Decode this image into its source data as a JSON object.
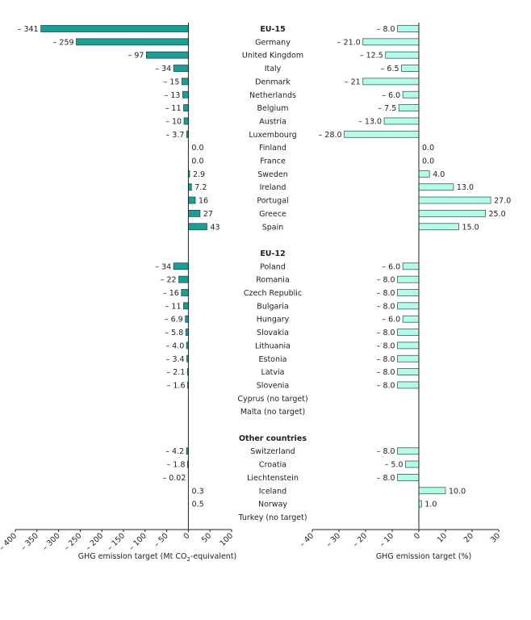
{
  "chart_data": [
    {
      "type": "bar",
      "orientation": "horizontal",
      "title": "",
      "xlabel": "GHG emission target (Mt CO2-equivalent)",
      "xlabel_parts": {
        "pre": "GHG emission target (Mt CO",
        "sub": "2",
        "post": "-equivalent)"
      },
      "xlim": [
        -400,
        100
      ],
      "xticks": [
        -400,
        -350,
        -300,
        -250,
        -200,
        -150,
        -100,
        -50,
        0,
        50,
        100
      ],
      "xtick_labels": [
        "– 400",
        "– 350",
        "– 300",
        "– 250",
        "– 200",
        "– 150",
        "– 100",
        "– 50",
        "0",
        "50",
        "100"
      ],
      "bar_color": "#1a9e96",
      "grid": false,
      "rows": [
        {
          "category": "EU-15",
          "value": -341,
          "label": "– 341"
        },
        {
          "category": "Germany",
          "value": -259,
          "label": "– 259"
        },
        {
          "category": "United Kingdom",
          "value": -97,
          "label": "– 97"
        },
        {
          "category": "Italy",
          "value": -34,
          "label": "– 34"
        },
        {
          "category": "Denmark",
          "value": -15,
          "label": "– 15"
        },
        {
          "category": "Netherlands",
          "value": -13,
          "label": "– 13"
        },
        {
          "category": "Belgium",
          "value": -11,
          "label": "– 11"
        },
        {
          "category": "Austria",
          "value": -10,
          "label": "– 10"
        },
        {
          "category": "Luxembourg",
          "value": -3.7,
          "label": "– 3.7"
        },
        {
          "category": "Finland",
          "value": 0.0,
          "label": "0.0"
        },
        {
          "category": "France",
          "value": 0.0,
          "label": "0.0"
        },
        {
          "category": "Sweden",
          "value": 2.9,
          "label": "2.9"
        },
        {
          "category": "Ireland",
          "value": 7.2,
          "label": "7.2"
        },
        {
          "category": "Portugal",
          "value": 16,
          "label": "16"
        },
        {
          "category": "Greece",
          "value": 27,
          "label": "27"
        },
        {
          "category": "Spain",
          "value": 43,
          "label": "43"
        },
        {
          "category": "",
          "value": null,
          "label": null
        },
        {
          "category": "EU-12",
          "value": null,
          "label": null
        },
        {
          "category": "Poland",
          "value": -34,
          "label": "– 34"
        },
        {
          "category": "Romania",
          "value": -22,
          "label": "– 22"
        },
        {
          "category": "Czech Republic",
          "value": -16,
          "label": "– 16"
        },
        {
          "category": "Bulgaria",
          "value": -11,
          "label": "– 11"
        },
        {
          "category": "Hungary",
          "value": -6.9,
          "label": "– 6.9"
        },
        {
          "category": "Slovakia",
          "value": -5.8,
          "label": "– 5.8"
        },
        {
          "category": "Lithuania",
          "value": -4.0,
          "label": "– 4.0"
        },
        {
          "category": "Estonia",
          "value": -3.4,
          "label": "– 3.4"
        },
        {
          "category": "Latvia",
          "value": -2.1,
          "label": "– 2.1"
        },
        {
          "category": "Slovenia",
          "value": -1.6,
          "label": "– 1.6"
        },
        {
          "category": "Cyprus (no target)",
          "value": null,
          "label": null
        },
        {
          "category": "Malta (no target)",
          "value": null,
          "label": null
        },
        {
          "category": "",
          "value": null,
          "label": null
        },
        {
          "category": "Other countries",
          "value": null,
          "label": null
        },
        {
          "category": "Switzerland",
          "value": -4.2,
          "label": "– 4.2"
        },
        {
          "category": "Croatia",
          "value": -1.8,
          "label": "– 1.8"
        },
        {
          "category": "Liechtenstein",
          "value": -0.02,
          "label": "– 0.02"
        },
        {
          "category": "Iceland",
          "value": 0.3,
          "label": "0.3"
        },
        {
          "category": "Norway",
          "value": 0.5,
          "label": "0.5"
        },
        {
          "category": "Turkey (no target)",
          "value": null,
          "label": null
        }
      ]
    },
    {
      "type": "bar",
      "orientation": "horizontal",
      "title": "",
      "xlabel": "GHG emission target (%)",
      "xlim": [
        -40,
        30
      ],
      "xticks": [
        -40,
        -30,
        -20,
        -10,
        0,
        10,
        20,
        30
      ],
      "xtick_labels": [
        "– 40",
        "– 30",
        "– 20",
        "– 10",
        "0",
        "10",
        "20",
        "30"
      ],
      "bar_color": "#b3fcea",
      "grid": false,
      "rows": [
        {
          "category": "EU-15",
          "value": -8.0,
          "label": "– 8.0"
        },
        {
          "category": "Germany",
          "value": -21.0,
          "label": "– 21.0"
        },
        {
          "category": "United Kingdom",
          "value": -12.5,
          "label": "– 12.5"
        },
        {
          "category": "Italy",
          "value": -6.5,
          "label": "– 6.5"
        },
        {
          "category": "Denmark",
          "value": -21,
          "label": "– 21"
        },
        {
          "category": "Netherlands",
          "value": -6.0,
          "label": "– 6.0"
        },
        {
          "category": "Belgium",
          "value": -7.5,
          "label": "– 7.5"
        },
        {
          "category": "Austria",
          "value": -13.0,
          "label": "– 13.0"
        },
        {
          "category": "Luxembourg",
          "value": -28.0,
          "label": "– 28.0"
        },
        {
          "category": "Finland",
          "value": 0.0,
          "label": "0.0"
        },
        {
          "category": "France",
          "value": 0.0,
          "label": "0.0"
        },
        {
          "category": "Sweden",
          "value": 4.0,
          "label": "4.0"
        },
        {
          "category": "Ireland",
          "value": 13.0,
          "label": "13.0"
        },
        {
          "category": "Portugal",
          "value": 27.0,
          "label": "27.0"
        },
        {
          "category": "Greece",
          "value": 25.0,
          "label": "25.0"
        },
        {
          "category": "Spain",
          "value": 15.0,
          "label": "15.0"
        },
        {
          "category": "",
          "value": null,
          "label": null
        },
        {
          "category": "EU-12",
          "value": null,
          "label": null
        },
        {
          "category": "Poland",
          "value": -6.0,
          "label": "– 6.0"
        },
        {
          "category": "Romania",
          "value": -8.0,
          "label": "– 8.0"
        },
        {
          "category": "Czech Republic",
          "value": -8.0,
          "label": "– 8.0"
        },
        {
          "category": "Bulgaria",
          "value": -8.0,
          "label": "– 8.0"
        },
        {
          "category": "Hungary",
          "value": -6.0,
          "label": "– 6.0"
        },
        {
          "category": "Slovakia",
          "value": -8.0,
          "label": "– 8.0"
        },
        {
          "category": "Lithuania",
          "value": -8.0,
          "label": "– 8.0"
        },
        {
          "category": "Estonia",
          "value": -8.0,
          "label": "– 8.0"
        },
        {
          "category": "Latvia",
          "value": -8.0,
          "label": "– 8.0"
        },
        {
          "category": "Slovenia",
          "value": -8.0,
          "label": "– 8.0"
        },
        {
          "category": "Cyprus (no target)",
          "value": null,
          "label": null
        },
        {
          "category": "Malta (no target)",
          "value": null,
          "label": null
        },
        {
          "category": "",
          "value": null,
          "label": null
        },
        {
          "category": "Other countries",
          "value": null,
          "label": null
        },
        {
          "category": "Switzerland",
          "value": -8.0,
          "label": "– 8.0"
        },
        {
          "category": "Croatia",
          "value": -5.0,
          "label": "– 5.0"
        },
        {
          "category": "Liechtenstein",
          "value": -8.0,
          "label": "– 8.0"
        },
        {
          "category": "Iceland",
          "value": 10.0,
          "label": "10.0"
        },
        {
          "category": "Norway",
          "value": 1.0,
          "label": "1.0"
        },
        {
          "category": "Turkey (no target)",
          "value": null,
          "label": null
        }
      ]
    }
  ],
  "bold_categories": [
    "EU-15",
    "EU-12",
    "Other countries"
  ]
}
